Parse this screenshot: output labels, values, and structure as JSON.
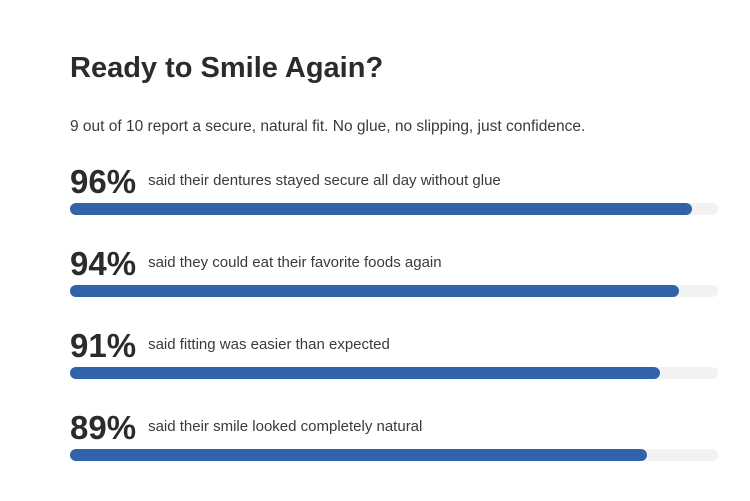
{
  "chart_data": {
    "type": "hbar",
    "title": "Ready to Smile Again?",
    "subtitle": "9 out of 10 report a secure, natural fit. No glue, no slipping, just confidence.",
    "categories": [
      "said their dentures stayed secure all day without glue",
      "said they could eat their favorite foods again",
      "said fitting was easier than expected",
      "said their smile looked completely natural"
    ],
    "values": [
      96,
      94,
      91,
      89
    ],
    "value_labels": [
      "96%",
      "94%",
      "91%",
      "89%"
    ],
    "xlim": [
      0,
      100
    ],
    "color": "#3162aa",
    "track_color": "#f2f2f2"
  }
}
